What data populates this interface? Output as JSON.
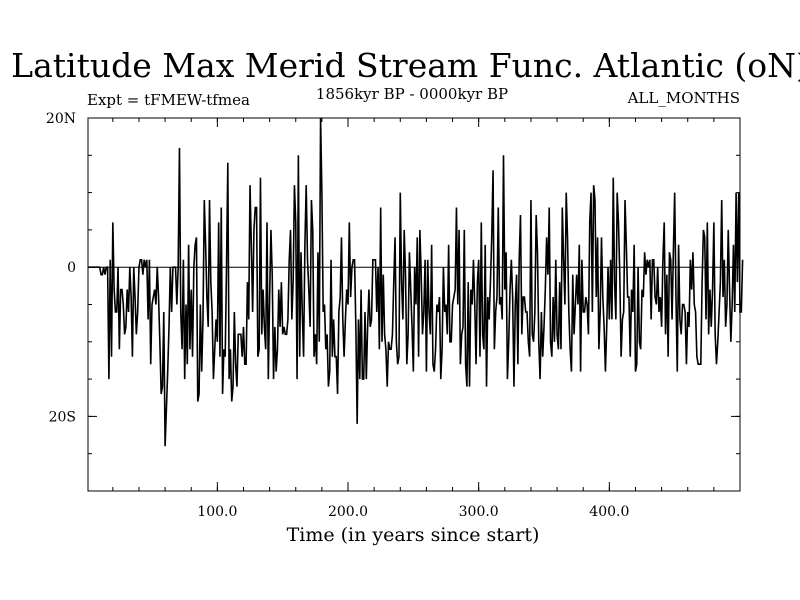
{
  "chart_data": {
    "type": "line",
    "title": "Latitude Max Merid Stream Func. Atlantic (oN)",
    "subtitle_left": "Expt = tFMEW-tfmea",
    "subtitle_center": "1856kyr BP - 0000kyr BP",
    "subtitle_right": "ALL_MONTHS",
    "xlabel": "Time (in years since start)",
    "ylabel": "",
    "xlim": [
      1,
      500
    ],
    "ylim": [
      -30,
      20
    ],
    "x_ticks": [
      {
        "value": 100,
        "label": "100.0"
      },
      {
        "value": 200,
        "label": "200.0"
      },
      {
        "value": 300,
        "label": "300.0"
      },
      {
        "value": 400,
        "label": "400.0"
      }
    ],
    "y_ticks": [
      {
        "value": 20,
        "label": "20N"
      },
      {
        "value": 0,
        "label": "0"
      },
      {
        "value": -20,
        "label": "20S"
      }
    ],
    "x_minor_step": 20,
    "y_minor_step": 5,
    "series": [
      {
        "name": "latitude_max_stream_function",
        "x_start": 1,
        "x_step": 1,
        "values": [
          0,
          0,
          0,
          0,
          0,
          0,
          0,
          0,
          0,
          0,
          -1,
          -1,
          0,
          -1,
          0,
          0,
          -15,
          1,
          -12,
          6,
          -3,
          -6,
          -6,
          0,
          -11,
          -3,
          -3,
          -5,
          -9,
          -8,
          -3,
          -6,
          0,
          -4,
          -12,
          0,
          -4,
          -9,
          -6,
          0,
          1,
          1,
          -1,
          1,
          0,
          1,
          -7,
          1,
          -13,
          -5,
          -4,
          -3,
          -5,
          0,
          -4,
          -10,
          -17,
          -16,
          -6,
          -24,
          -19,
          -14,
          -8,
          0,
          -6,
          0,
          0,
          0,
          -5,
          0,
          16,
          -6,
          -11,
          1,
          -15,
          -5,
          -13,
          3,
          -11,
          -3,
          -12,
          0,
          3,
          4,
          -18,
          -17,
          -5,
          -14,
          -7,
          9,
          3,
          -4,
          -8,
          9,
          -2,
          -6,
          -15,
          -11,
          -7,
          -10,
          6,
          -12,
          8,
          -17,
          -11,
          -12,
          0,
          14,
          -15,
          -11,
          -18,
          -16,
          -6,
          -13,
          -16,
          -9,
          -9,
          -9,
          -12,
          -8,
          -13,
          -13,
          -2,
          -7,
          11,
          3,
          -6,
          5,
          8,
          8,
          -12,
          -11,
          12,
          -9,
          -3,
          -8,
          -11,
          6,
          -15,
          -4,
          5,
          -1,
          -15,
          -8,
          -14,
          -11,
          -3,
          -8,
          -2,
          -9,
          -8,
          -9,
          -9,
          -7,
          1,
          5,
          -7,
          -2,
          11,
          6,
          -15,
          15,
          -12,
          2,
          -6,
          -12,
          3,
          11,
          1,
          -3,
          -8,
          9,
          5,
          -12,
          -9,
          -13,
          2,
          -10,
          20,
          10,
          -6,
          -5,
          -11,
          -9,
          -16,
          -14,
          1,
          -12,
          -7,
          -12,
          -12,
          -17,
          -6,
          -4,
          4,
          -7,
          -12,
          -7,
          -3,
          -5,
          6,
          -4,
          0,
          1,
          1,
          -8,
          -21,
          -7,
          -15,
          -3,
          -15,
          -15,
          -6,
          -15,
          -8,
          -3,
          -8,
          -7,
          1,
          1,
          1,
          -6,
          0,
          -11,
          8,
          -10,
          -1,
          -9,
          -11,
          -16,
          -10,
          -11,
          -11,
          -9,
          -2,
          4,
          -10,
          -13,
          -12,
          10,
          -2,
          -7,
          5,
          -1,
          -13,
          -9,
          2,
          -3,
          -8,
          -14,
          0,
          -5,
          4,
          -12,
          5,
          -1,
          -9,
          -6,
          1,
          -14,
          1,
          -6,
          -9,
          3,
          -13,
          -14,
          -11,
          -5,
          -6,
          -4,
          -15,
          -11,
          0,
          -6,
          -5,
          -9,
          3,
          -10,
          -10,
          -5,
          -4,
          -3,
          8,
          -5,
          5,
          -13,
          -9,
          -8,
          5,
          -13,
          -16,
          -2,
          -16,
          -3,
          -5,
          1,
          -5,
          -13,
          -2,
          1,
          -12,
          6,
          -9,
          -11,
          3,
          -16,
          -4,
          -7,
          -2,
          4,
          13,
          -11,
          -6,
          -4,
          8,
          -5,
          -4,
          -7,
          15,
          -3,
          2,
          -15,
          -10,
          -3,
          1,
          -4,
          -16,
          -5,
          -1,
          -13,
          1,
          7,
          -9,
          -4,
          -4,
          -6,
          -6,
          -10,
          -12,
          9,
          -9,
          -10,
          -6,
          7,
          2,
          -10,
          -15,
          -6,
          -12,
          -8,
          -3,
          4,
          -1,
          8,
          -10,
          -12,
          -4,
          -10,
          1,
          -9,
          -11,
          -2,
          -11,
          8,
          1,
          -5,
          10,
          4,
          -6,
          -11,
          -14,
          -1,
          -9,
          -5,
          -1,
          -5,
          3,
          -14,
          1,
          -6,
          -6,
          -4,
          -5,
          -9,
          6,
          10,
          -6,
          11,
          9,
          -4,
          4,
          -11,
          -6,
          4,
          -4,
          -8,
          -14,
          -8,
          0,
          -7,
          1,
          -7,
          12,
          -2,
          -7,
          10,
          6,
          -1,
          -12,
          -7,
          -6,
          9,
          3,
          -4,
          -4,
          -12,
          -3,
          -6,
          3,
          -14,
          -13,
          0,
          -10,
          -11,
          -3,
          -4,
          2,
          -1,
          1,
          0,
          1,
          -7,
          1,
          1,
          -4,
          -5,
          0,
          -6,
          -4,
          -8,
          1,
          6,
          -9,
          -1,
          -12,
          2,
          1,
          -7,
          2,
          10,
          -4,
          -14,
          3,
          -7,
          -9,
          -5,
          -5,
          -6,
          -13,
          -6,
          -8,
          1,
          -3,
          2,
          -5,
          -6,
          -12,
          -13,
          -13,
          -13,
          -2,
          5,
          4,
          -7,
          6,
          -9,
          -3,
          -8,
          -3,
          6,
          -9,
          -13,
          -10,
          -6,
          -2,
          9,
          -4,
          1,
          -8,
          -5,
          5,
          -3,
          -10,
          -5,
          3,
          -6,
          10,
          -2,
          10,
          -6,
          -6,
          1
        ]
      }
    ]
  }
}
